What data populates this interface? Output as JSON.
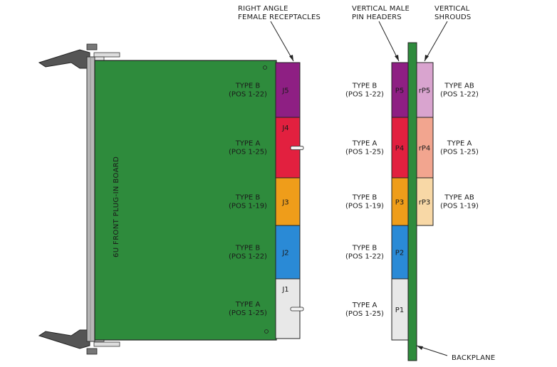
{
  "header_labels": {
    "right_angle_line1": "RIGHT ANGLE",
    "right_angle_line2": "FEMALE RECEPTACLES",
    "vertical_male_line1": "VERTICAL MALE",
    "vertical_male_line2": "PIN HEADERS",
    "vertical_shrouds_line1": "VERTICAL",
    "vertical_shrouds_line2": "SHROUDS",
    "backplane": "BACKPLANE"
  },
  "board": {
    "label": "6U FRONT PLUG-IN BOARD",
    "color": "#2e8b3c"
  },
  "colors": {
    "backplane": "#2e8b3c",
    "outline": "#222222"
  },
  "receptacles": [
    {
      "id": "J5",
      "type": "TYPE B",
      "pos": "(POS 1-22)",
      "color": "#8e1f83"
    },
    {
      "id": "J4",
      "type": "TYPE A",
      "pos": "(POS 1-25)",
      "color": "#e2203f"
    },
    {
      "id": "J3",
      "type": "TYPE B",
      "pos": "(POS 1-19)",
      "color": "#ef9d1a"
    },
    {
      "id": "J2",
      "type": "TYPE B",
      "pos": "(POS 1-22)",
      "color": "#2a8ad6"
    },
    {
      "id": "J1",
      "type": "TYPE A",
      "pos": "(POS 1-25)",
      "color": "#e8e8e8"
    }
  ],
  "pin_headers": [
    {
      "id": "P5",
      "type": "TYPE B",
      "pos": "(POS 1-22)",
      "color": "#8e1f83"
    },
    {
      "id": "P4",
      "type": "TYPE A",
      "pos": "(POS 1-25)",
      "color": "#e2203f"
    },
    {
      "id": "P3",
      "type": "TYPE B",
      "pos": "(POS 1-19)",
      "color": "#ef9d1a"
    },
    {
      "id": "P2",
      "type": "TYPE B",
      "pos": "(POS 1-22)",
      "color": "#2a8ad6"
    },
    {
      "id": "P1",
      "type": "TYPE A",
      "pos": "(POS 1-25)",
      "color": "#e8e8e8"
    }
  ],
  "shrouds": [
    {
      "id": "rP5",
      "type": "TYPE AB",
      "pos": "(POS 1-22)",
      "color": "#d9a4cf"
    },
    {
      "id": "rP4",
      "type": "TYPE A",
      "pos": "(POS 1-25)",
      "color": "#f2a58f"
    },
    {
      "id": "rP3",
      "type": "TYPE AB",
      "pos": "(POS 1-19)",
      "color": "#f8d8a6"
    }
  ]
}
